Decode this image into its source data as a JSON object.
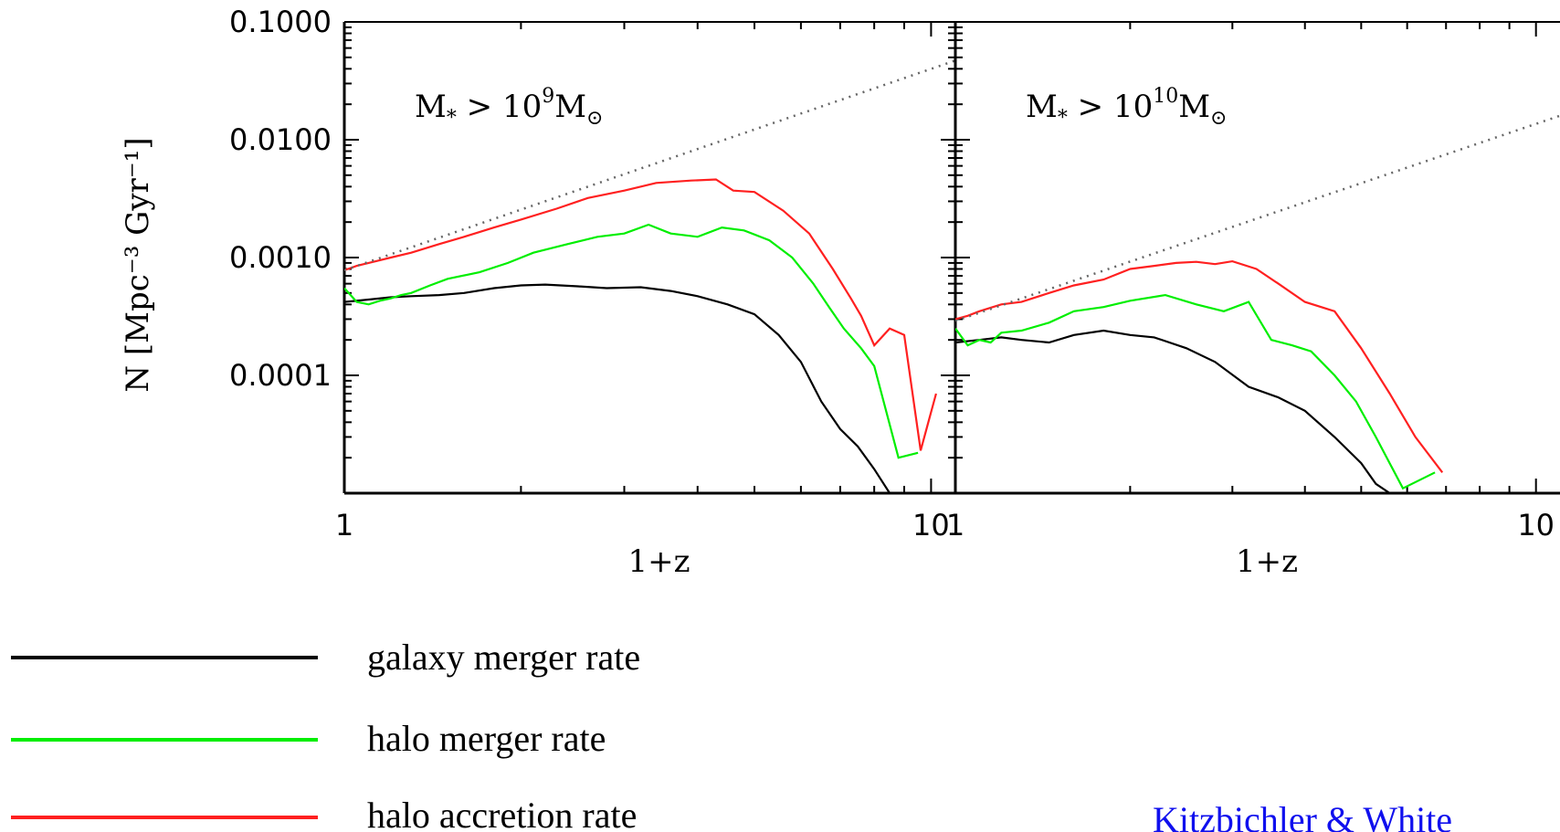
{
  "chart_data": [
    {
      "type": "line",
      "panel_label": {
        "prefix": "M",
        "sub": "*",
        "op": " > ",
        "base": "10",
        "exp": "9",
        "unit": "M",
        "unit_sub": "⊙"
      },
      "xlabel": "1+z",
      "ylabel": "N [Mpc⁻³ Gyr⁻¹]",
      "xscale": "log",
      "yscale": "log",
      "xlim": [
        1,
        11
      ],
      "ylim": [
        1e-05,
        0.1
      ],
      "xticks": [
        "1",
        "10"
      ],
      "yticks": [
        "0.1000",
        "0.0100",
        "0.0010",
        "0.0001"
      ],
      "series": [
        {
          "name": "galaxy merger rate",
          "color": "#000000",
          "style": "solid",
          "x": [
            1.0,
            1.1,
            1.2,
            1.3,
            1.45,
            1.6,
            1.8,
            2.0,
            2.2,
            2.5,
            2.8,
            3.2,
            3.6,
            4.0,
            4.5,
            5.0,
            5.5,
            6.0,
            6.5,
            7.0,
            7.5,
            8.0,
            8.5
          ],
          "y": [
            0.00042,
            0.00044,
            0.00046,
            0.00047,
            0.00048,
            0.0005,
            0.00055,
            0.00058,
            0.00059,
            0.00057,
            0.00055,
            0.00056,
            0.00052,
            0.00047,
            0.0004,
            0.00033,
            0.00022,
            0.00013,
            6e-05,
            3.5e-05,
            2.5e-05,
            1.6e-05,
            1e-05
          ]
        },
        {
          "name": "halo merger rate",
          "color": "#00ee00",
          "style": "solid",
          "x": [
            1.0,
            1.05,
            1.1,
            1.15,
            1.2,
            1.25,
            1.3,
            1.4,
            1.5,
            1.7,
            1.9,
            2.1,
            2.4,
            2.7,
            3.0,
            3.3,
            3.6,
            4.0,
            4.4,
            4.8,
            5.3,
            5.8,
            6.3,
            6.7,
            7.1,
            7.6,
            8.0,
            8.8,
            9.5
          ],
          "y": [
            0.00055,
            0.00042,
            0.0004,
            0.00043,
            0.00045,
            0.00048,
            0.0005,
            0.00058,
            0.00066,
            0.00075,
            0.0009,
            0.0011,
            0.0013,
            0.0015,
            0.0016,
            0.0019,
            0.0016,
            0.0015,
            0.0018,
            0.0017,
            0.0014,
            0.001,
            0.0006,
            0.00038,
            0.00025,
            0.00017,
            0.00012,
            2e-05,
            2.2e-05
          ]
        },
        {
          "name": "halo accretion rate",
          "color": "#ff2020",
          "style": "solid",
          "x": [
            1.0,
            1.05,
            1.1,
            1.15,
            1.2,
            1.3,
            1.45,
            1.6,
            1.8,
            2.0,
            2.3,
            2.6,
            3.0,
            3.4,
            3.9,
            4.3,
            4.6,
            5.0,
            5.6,
            6.2,
            6.8,
            7.3,
            7.6,
            8.0,
            8.5,
            9.0,
            9.6,
            10.2
          ],
          "y": [
            0.00078,
            0.00085,
            0.0009,
            0.00095,
            0.001,
            0.0011,
            0.0013,
            0.0015,
            0.0018,
            0.0021,
            0.0026,
            0.0032,
            0.0037,
            0.0043,
            0.0045,
            0.0046,
            0.0037,
            0.0036,
            0.0025,
            0.0016,
            0.0008,
            0.00045,
            0.00032,
            0.00018,
            0.00025,
            0.00022,
            2.3e-05,
            7e-05
          ]
        },
        {
          "name": "",
          "color": "#666666",
          "style": "dotted",
          "x": [
            1.0,
            11.0
          ],
          "y": [
            0.00078,
            0.047
          ]
        }
      ]
    },
    {
      "type": "line",
      "panel_label": {
        "prefix": "M",
        "sub": "*",
        "op": " > ",
        "base": "10",
        "exp": "10",
        "unit": "M",
        "unit_sub": "⊙"
      },
      "xlabel": "1+z",
      "ylabel": "",
      "xscale": "log",
      "yscale": "log",
      "xlim": [
        1,
        11
      ],
      "ylim": [
        1e-05,
        0.1
      ],
      "xticks": [
        "1",
        "10"
      ],
      "yticks": [],
      "series": [
        {
          "name": "galaxy merger rate",
          "color": "#000000",
          "style": "solid",
          "x": [
            1.0,
            1.1,
            1.2,
            1.3,
            1.45,
            1.6,
            1.8,
            2.0,
            2.2,
            2.5,
            2.8,
            3.2,
            3.6,
            4.0,
            4.5,
            5.0,
            5.3,
            5.6
          ],
          "y": [
            0.00019,
            0.0002,
            0.00021,
            0.0002,
            0.00019,
            0.00022,
            0.00024,
            0.00022,
            0.00021,
            0.00017,
            0.00013,
            8e-05,
            6.5e-05,
            5e-05,
            3e-05,
            1.8e-05,
            1.2e-05,
            1e-05
          ]
        },
        {
          "name": "halo merger rate",
          "color": "#00ee00",
          "style": "solid",
          "x": [
            1.0,
            1.05,
            1.1,
            1.15,
            1.2,
            1.3,
            1.45,
            1.6,
            1.8,
            2.0,
            2.3,
            2.6,
            2.9,
            3.2,
            3.5,
            3.8,
            4.1,
            4.5,
            4.9,
            5.3,
            5.9,
            6.7
          ],
          "y": [
            0.00025,
            0.00018,
            0.0002,
            0.00019,
            0.00023,
            0.00024,
            0.00028,
            0.00035,
            0.00038,
            0.00043,
            0.00048,
            0.0004,
            0.00035,
            0.00042,
            0.0002,
            0.00018,
            0.00016,
            0.0001,
            6e-05,
            3e-05,
            1.1e-05,
            1.5e-05
          ]
        },
        {
          "name": "halo accretion rate",
          "color": "#ff2020",
          "style": "solid",
          "x": [
            1.0,
            1.05,
            1.1,
            1.2,
            1.3,
            1.45,
            1.6,
            1.8,
            2.0,
            2.2,
            2.4,
            2.6,
            2.8,
            3.0,
            3.3,
            3.6,
            4.0,
            4.5,
            5.0,
            5.6,
            6.2,
            6.9
          ],
          "y": [
            0.0003,
            0.00032,
            0.00035,
            0.0004,
            0.00042,
            0.0005,
            0.00058,
            0.00065,
            0.0008,
            0.00085,
            0.0009,
            0.00092,
            0.00088,
            0.00093,
            0.0008,
            0.0006,
            0.00042,
            0.00035,
            0.00017,
            7e-05,
            3e-05,
            1.5e-05
          ]
        },
        {
          "name": "",
          "color": "#666666",
          "style": "dotted",
          "x": [
            1.0,
            11.0
          ],
          "y": [
            0.00029,
            0.016
          ]
        }
      ]
    }
  ],
  "legend": [
    {
      "label": "galaxy merger rate",
      "color": "#000000"
    },
    {
      "label": "halo merger rate",
      "color": "#00ee00"
    },
    {
      "label": "halo accretion rate",
      "color": "#ff2020"
    }
  ],
  "credit": "Kitzbichler & White"
}
